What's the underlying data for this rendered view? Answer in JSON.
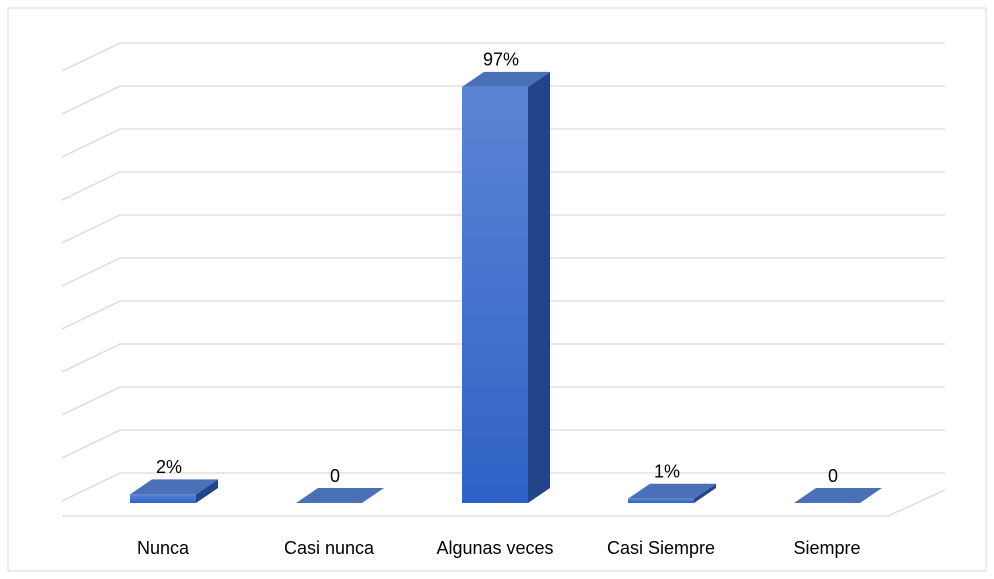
{
  "chart_data": {
    "type": "bar3d",
    "categories": [
      "Nunca",
      "Casi nunca",
      "Algunas veces",
      "Casi Siempre",
      "Siempre"
    ],
    "values": [
      2,
      0,
      97,
      1,
      0
    ],
    "value_labels": [
      "2%",
      "0",
      "97%",
      "1%",
      "0"
    ],
    "color": "#3a6fcf",
    "ylim": [
      0,
      100
    ],
    "yticks": [
      0,
      10,
      20,
      30,
      40,
      50,
      60,
      70,
      80,
      90,
      100
    ],
    "grid": true
  }
}
